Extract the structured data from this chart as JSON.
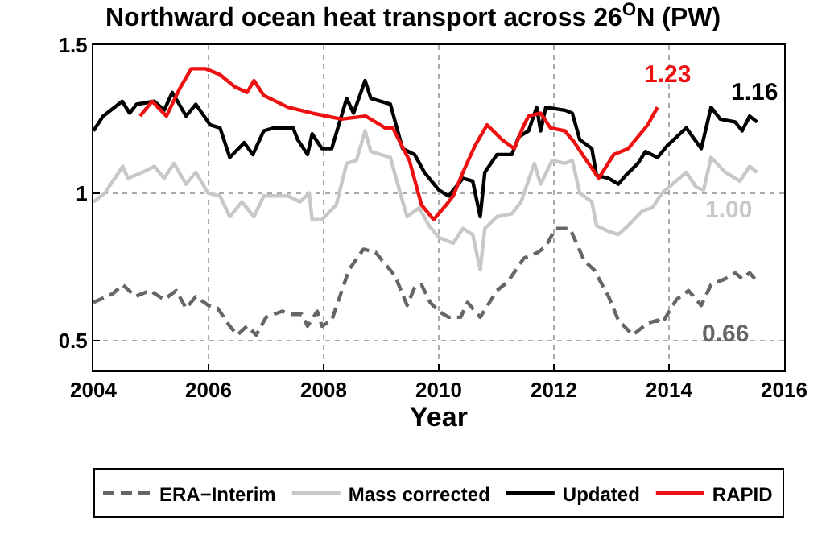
{
  "chart_data": {
    "type": "line",
    "title": "Northward ocean heat transport across 26$^{O}$N (PW)",
    "xlabel": "Year",
    "xlim": [
      2004,
      2016
    ],
    "xticks": [
      2004,
      2006,
      2008,
      2010,
      2012,
      2014,
      2016
    ],
    "ylim": [
      0.4,
      1.5
    ],
    "yticks": [
      0.5,
      1,
      1.5
    ],
    "grid": true,
    "legend": "bottom",
    "series": [
      {
        "name": "ERA−Interim",
        "color": "#666666",
        "line_style": "dashed",
        "x": [
          2004.0,
          2004.34,
          2004.51,
          2004.73,
          2004.98,
          2005.23,
          2005.44,
          2005.61,
          2005.78,
          2006.0,
          2006.16,
          2006.37,
          2006.5,
          2006.67,
          2006.83,
          2007.0,
          2007.28,
          2007.45,
          2007.62,
          2007.72,
          2007.89,
          2007.97,
          2008.14,
          2008.44,
          2008.69,
          2008.9,
          2009.24,
          2009.45,
          2009.58,
          2009.7,
          2009.85,
          2010.0,
          2010.17,
          2010.38,
          2010.5,
          2010.72,
          2011.01,
          2011.2,
          2011.48,
          2011.73,
          2011.86,
          2012.03,
          2012.28,
          2012.53,
          2012.7,
          2012.95,
          2013.12,
          2013.37,
          2013.63,
          2013.8,
          2013.88,
          2014.13,
          2014.34,
          2014.56,
          2014.73,
          2014.98,
          2015.15,
          2015.27,
          2015.4,
          2015.49
        ],
        "values": [
          0.63,
          0.66,
          0.69,
          0.65,
          0.67,
          0.64,
          0.67,
          0.61,
          0.65,
          0.62,
          0.61,
          0.55,
          0.52,
          0.55,
          0.52,
          0.58,
          0.6,
          0.59,
          0.59,
          0.55,
          0.6,
          0.55,
          0.57,
          0.74,
          0.81,
          0.8,
          0.72,
          0.62,
          0.68,
          0.69,
          0.63,
          0.6,
          0.58,
          0.58,
          0.63,
          0.58,
          0.67,
          0.7,
          0.78,
          0.8,
          0.82,
          0.88,
          0.88,
          0.77,
          0.74,
          0.65,
          0.57,
          0.52,
          0.56,
          0.57,
          0.56,
          0.64,
          0.67,
          0.62,
          0.69,
          0.71,
          0.73,
          0.71,
          0.73,
          0.71
        ]
      },
      {
        "name": "Mass corrected",
        "color": "#c8c8c8",
        "line_style": "solid",
        "x": [
          2004.0,
          2004.2,
          2004.51,
          2004.6,
          2004.85,
          2005.06,
          2005.23,
          2005.4,
          2005.61,
          2005.78,
          2005.99,
          2006.2,
          2006.37,
          2006.58,
          2006.79,
          2006.96,
          2007.38,
          2007.59,
          2007.75,
          2007.8,
          2007.97,
          2008.22,
          2008.4,
          2008.57,
          2008.72,
          2008.82,
          2009.16,
          2009.33,
          2009.45,
          2009.66,
          2009.83,
          2010.0,
          2010.25,
          2010.42,
          2010.59,
          2010.72,
          2010.8,
          2011.01,
          2011.27,
          2011.43,
          2011.66,
          2011.77,
          2011.97,
          2012.19,
          2012.32,
          2012.45,
          2012.66,
          2012.74,
          2012.95,
          2013.12,
          2013.29,
          2013.54,
          2013.71,
          2013.88,
          2014.3,
          2014.47,
          2014.6,
          2014.73,
          2014.98,
          2015.23,
          2015.4,
          2015.53
        ],
        "values": [
          0.97,
          1.0,
          1.09,
          1.05,
          1.07,
          1.09,
          1.05,
          1.1,
          1.03,
          1.07,
          1.0,
          0.99,
          0.92,
          0.97,
          0.92,
          0.99,
          0.99,
          0.97,
          1.0,
          0.91,
          0.91,
          0.96,
          1.1,
          1.11,
          1.21,
          1.14,
          1.12,
          1.0,
          0.92,
          0.95,
          0.89,
          0.85,
          0.83,
          0.88,
          0.86,
          0.74,
          0.88,
          0.92,
          0.93,
          0.97,
          1.1,
          1.03,
          1.11,
          1.1,
          1.11,
          1.0,
          0.97,
          0.89,
          0.87,
          0.86,
          0.89,
          0.94,
          0.95,
          1.0,
          1.07,
          1.02,
          1.01,
          1.12,
          1.07,
          1.04,
          1.09,
          1.07
        ]
      },
      {
        "name": "Updated",
        "color": "#000000",
        "line_style": "solid",
        "x": [
          2004.0,
          2004.17,
          2004.5,
          2004.63,
          2004.75,
          2005.06,
          2005.23,
          2005.37,
          2005.61,
          2005.78,
          2006.03,
          2006.2,
          2006.37,
          2006.62,
          2006.77,
          2006.96,
          2007.13,
          2007.47,
          2007.55,
          2007.72,
          2007.8,
          2007.97,
          2008.14,
          2008.4,
          2008.52,
          2008.72,
          2008.82,
          2009.16,
          2009.37,
          2009.58,
          2009.75,
          2010.0,
          2010.17,
          2010.42,
          2010.59,
          2010.72,
          2010.8,
          2011.01,
          2011.27,
          2011.39,
          2011.56,
          2011.7,
          2011.77,
          2011.86,
          2012.19,
          2012.32,
          2012.45,
          2012.66,
          2012.74,
          2012.95,
          2013.12,
          2013.25,
          2013.46,
          2013.59,
          2013.8,
          2013.97,
          2014.3,
          2014.56,
          2014.73,
          2014.89,
          2015.15,
          2015.27,
          2015.4,
          2015.53
        ],
        "values": [
          1.21,
          1.26,
          1.31,
          1.27,
          1.3,
          1.31,
          1.28,
          1.34,
          1.26,
          1.3,
          1.23,
          1.22,
          1.12,
          1.17,
          1.13,
          1.21,
          1.22,
          1.22,
          1.18,
          1.13,
          1.2,
          1.15,
          1.15,
          1.32,
          1.27,
          1.38,
          1.32,
          1.3,
          1.15,
          1.13,
          1.07,
          1.01,
          0.99,
          1.05,
          1.04,
          0.92,
          1.07,
          1.13,
          1.13,
          1.19,
          1.21,
          1.29,
          1.21,
          1.29,
          1.28,
          1.27,
          1.18,
          1.15,
          1.06,
          1.05,
          1.03,
          1.06,
          1.1,
          1.14,
          1.12,
          1.16,
          1.22,
          1.15,
          1.29,
          1.25,
          1.24,
          1.21,
          1.26,
          1.24
        ]
      },
      {
        "name": "RAPID",
        "color": "#ee1111",
        "line_style": "solid",
        "x": [
          2004.81,
          2005.02,
          2005.27,
          2005.49,
          2005.7,
          2005.95,
          2006.2,
          2006.45,
          2006.67,
          2006.79,
          2006.96,
          2007.38,
          2007.8,
          2008.31,
          2008.73,
          2009.07,
          2009.2,
          2009.49,
          2009.7,
          2009.91,
          2010.13,
          2010.25,
          2010.42,
          2010.63,
          2010.84,
          2011.1,
          2011.31,
          2011.48,
          2011.56,
          2011.77,
          2011.94,
          2012.19,
          2012.36,
          2012.53,
          2012.78,
          2013.04,
          2013.29,
          2013.63,
          2013.8
        ],
        "values": [
          1.26,
          1.31,
          1.26,
          1.35,
          1.42,
          1.42,
          1.4,
          1.36,
          1.34,
          1.38,
          1.33,
          1.29,
          1.27,
          1.25,
          1.26,
          1.22,
          1.22,
          1.11,
          0.96,
          0.91,
          0.96,
          0.99,
          1.07,
          1.16,
          1.23,
          1.18,
          1.15,
          1.23,
          1.26,
          1.27,
          1.22,
          1.21,
          1.17,
          1.12,
          1.05,
          1.13,
          1.15,
          1.23,
          1.29
        ]
      }
    ],
    "annotations": [
      "0.66",
      "1.00",
      "1.16",
      "1.23"
    ]
  }
}
